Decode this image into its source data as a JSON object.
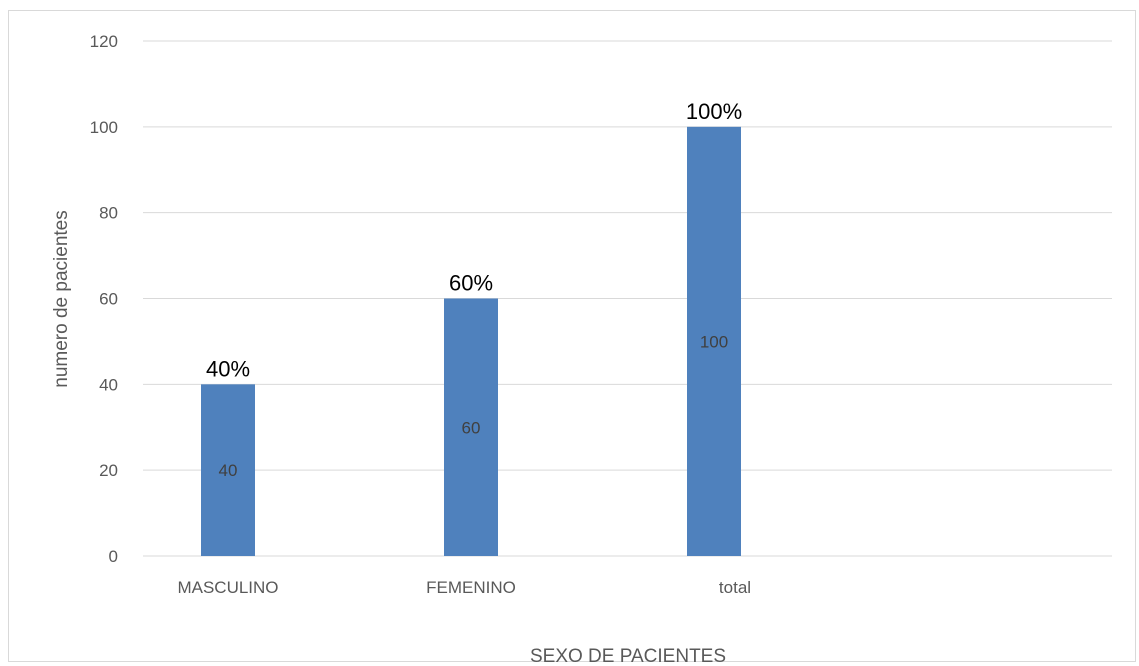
{
  "chart_data": {
    "type": "bar",
    "categories": [
      "MASCULINO",
      "FEMENINO",
      "total"
    ],
    "values": [
      40,
      60,
      100
    ],
    "inner_labels": [
      "40",
      "60",
      "100"
    ],
    "annotations": [
      "40%",
      "60%",
      "100%"
    ],
    "title": "",
    "xlabel": "SEXO DE PACIENTES",
    "ylabel": "numero de pacientes",
    "ylim": [
      0,
      120
    ],
    "yticks": [
      "0",
      "20",
      "40",
      "60",
      "80",
      "100",
      "120"
    ],
    "grid": true,
    "legend": "none",
    "bar_color": "#4F81BD",
    "grid_color": "#D9D9D9"
  }
}
